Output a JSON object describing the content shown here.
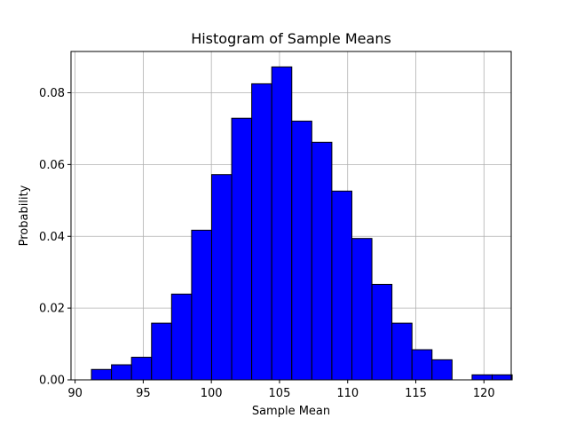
{
  "chart_data": {
    "type": "bar",
    "title": "Histogram of Sample Means",
    "xlabel": "Sample Mean",
    "ylabel": "Probability",
    "xlim": [
      89.7,
      122.0
    ],
    "ylim": [
      0,
      0.0915
    ],
    "x_ticks": [
      90,
      95,
      100,
      105,
      110,
      115,
      120
    ],
    "x_tick_labels": [
      "90",
      "95",
      "100",
      "105",
      "110",
      "115",
      "120"
    ],
    "y_ticks": [
      0,
      0.02,
      0.04,
      0.06,
      0.08
    ],
    "y_tick_labels": [
      "0.00",
      "0.02",
      "0.04",
      "0.06",
      "0.08"
    ],
    "grid": true,
    "bar_color": "#0000ff",
    "edge_color": "#000000",
    "bin_start": 91.2,
    "bin_width": 1.47,
    "values": [
      0.0029,
      0.0042,
      0.0063,
      0.0158,
      0.0239,
      0.0417,
      0.0572,
      0.0729,
      0.0825,
      0.0872,
      0.0721,
      0.0662,
      0.0526,
      0.0394,
      0.0266,
      0.0158,
      0.0084,
      0.0056,
      0.0,
      0.0014,
      0.0014
    ]
  }
}
